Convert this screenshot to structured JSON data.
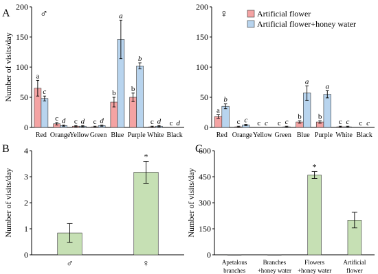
{
  "colors": {
    "artificial_flower": "#f4a3a3",
    "honey_water": "#b8d4ee",
    "green": "#c6e0b4",
    "outline": "#333333"
  },
  "legend": {
    "labels": [
      "Artificial flower",
      "Artificial flower+honey water"
    ],
    "placement": "top-right of panel A (right)"
  },
  "chart_data": [
    {
      "panel": "A",
      "sex_symbol": "♂",
      "type": "bar",
      "categories": [
        "Red",
        "Orange",
        "Yellow",
        "Green",
        "Blue",
        "Purple",
        "White",
        "Black"
      ],
      "series": [
        {
          "name": "Artificial flower",
          "values": [
            65,
            6,
            2,
            1,
            42,
            50,
            1,
            0
          ],
          "errors": [
            13,
            2,
            1,
            1,
            8,
            7,
            1,
            0
          ],
          "letters": [
            "a",
            "c",
            "c",
            "c",
            "b",
            "b",
            "c",
            "c"
          ]
        },
        {
          "name": "Artificial flower+honey water",
          "values": [
            48,
            3,
            2,
            3,
            146,
            102,
            2,
            0
          ],
          "errors": [
            4,
            1,
            1,
            1,
            32,
            5,
            1,
            0
          ],
          "letters": [
            "c",
            "d",
            "d",
            "d",
            "a",
            "b",
            "d",
            "d"
          ]
        }
      ],
      "ylabel": "Number of visits/day",
      "ylim": [
        0,
        200
      ],
      "yticks": [
        0,
        50,
        100,
        150,
        200
      ],
      "grid": false
    },
    {
      "panel": "",
      "sex_symbol": "♀",
      "type": "bar",
      "categories": [
        "Red",
        "Orange",
        "Yellow",
        "Green",
        "Blue",
        "Purple",
        "White",
        "Black"
      ],
      "series": [
        {
          "name": "Artificial flower",
          "values": [
            18,
            1,
            0,
            0,
            9,
            9,
            1,
            0
          ],
          "errors": [
            3,
            1,
            0,
            0,
            2,
            2,
            1,
            0
          ],
          "letters": [
            "a",
            "c",
            "c",
            "c",
            "b",
            "b",
            "c",
            "c"
          ]
        },
        {
          "name": "Artificial flower+honey water",
          "values": [
            35,
            4,
            0,
            1,
            57,
            55,
            1,
            0
          ],
          "errors": [
            4,
            1,
            0,
            1,
            12,
            6,
            1,
            0
          ],
          "letters": [
            "b",
            "c",
            "c",
            "c",
            "a",
            "a",
            "c",
            "c"
          ]
        }
      ],
      "ylabel": "",
      "ylim": [
        0,
        200
      ],
      "yticks": [
        0,
        50,
        100,
        150,
        200
      ],
      "grid": false
    },
    {
      "panel": "B",
      "type": "bar",
      "categories": [
        "♂",
        "♀"
      ],
      "values": [
        0.84,
        3.17
      ],
      "errors": [
        0.36,
        0.42
      ],
      "annotations": [
        "",
        "*"
      ],
      "ylabel": "Number of visits/day",
      "ylim": [
        0,
        4
      ],
      "yticks": [
        0,
        1,
        2,
        3,
        4
      ],
      "grid": false
    },
    {
      "panel": "C",
      "type": "bar",
      "categories": [
        "Apetalous branches",
        "Branches +honey water",
        "Flowers +honey water",
        "Artificial flower"
      ],
      "category_lines": [
        [
          "Apetalous",
          "branches"
        ],
        [
          "Branches",
          "+honey water"
        ],
        [
          "Flowers",
          "+honey water"
        ],
        [
          "Artificial",
          "flower"
        ]
      ],
      "values": [
        0,
        0,
        460,
        200
      ],
      "errors": [
        0,
        0,
        20,
        45
      ],
      "annotations": [
        "",
        "",
        "*",
        ""
      ],
      "ylabel": "Number of visits/day",
      "ylim": [
        0,
        600
      ],
      "yticks": [
        0,
        150,
        300,
        450,
        600
      ],
      "grid": false
    }
  ]
}
